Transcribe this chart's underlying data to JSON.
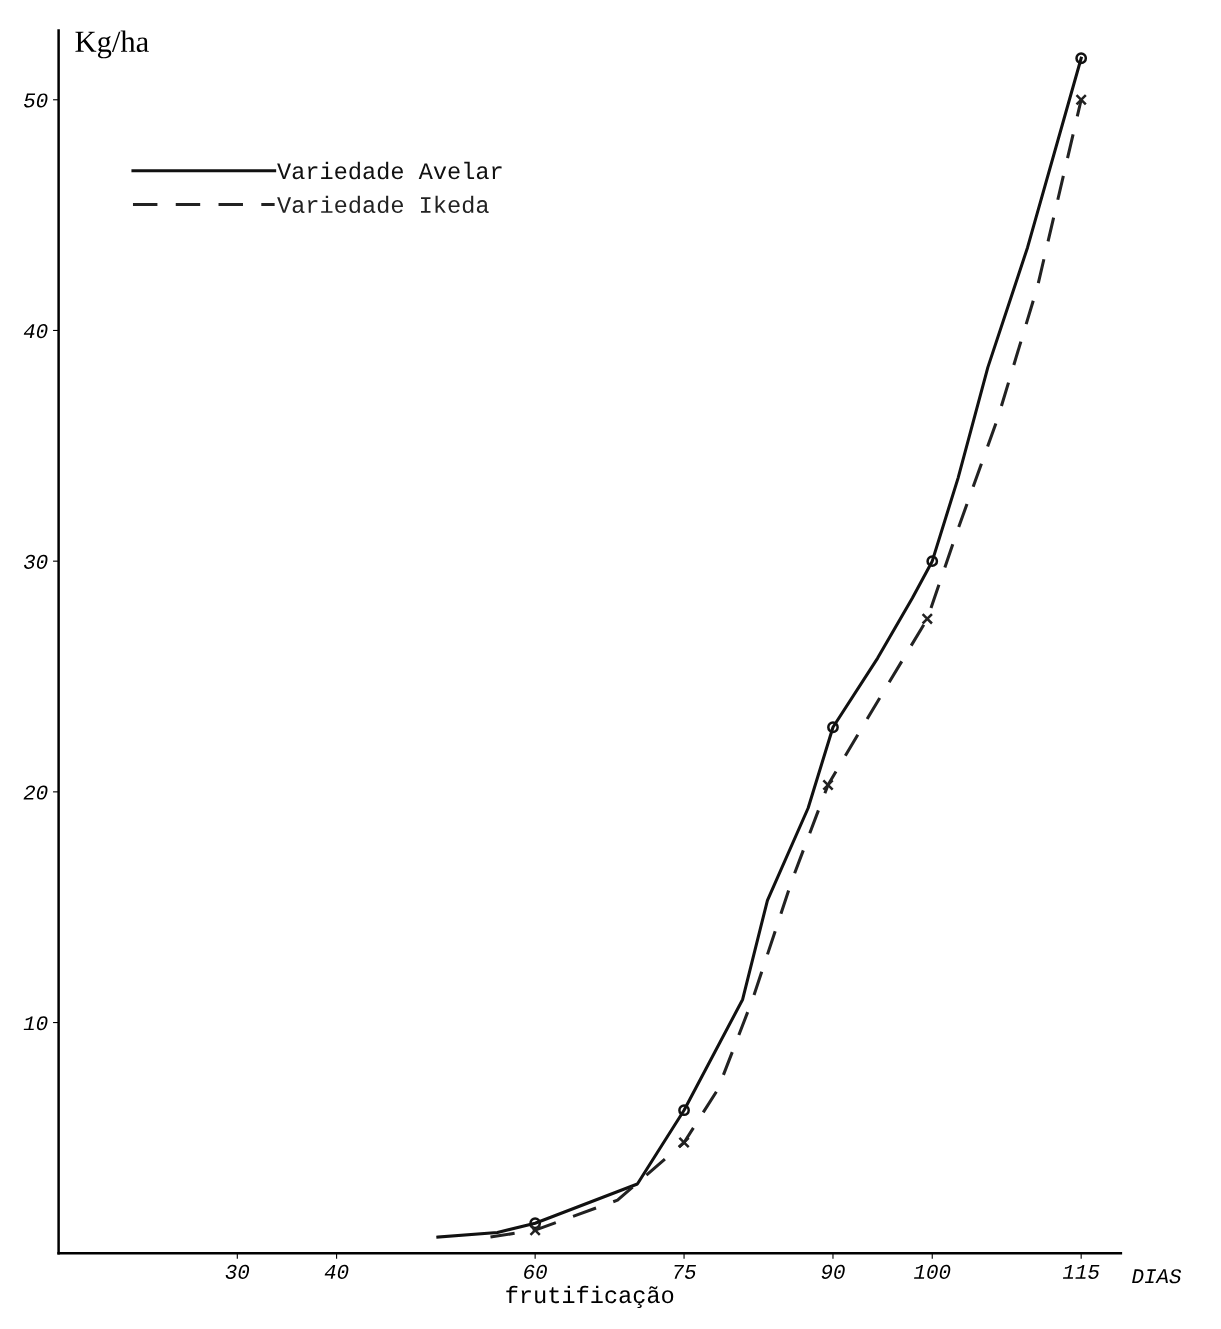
{
  "chart_data": {
    "type": "line",
    "ylabel": "Kg/ha",
    "xlabel": "frutificação",
    "annotations": [
      "DIAS"
    ],
    "xlim": [
      12,
      119
    ],
    "xticks": [
      30,
      40,
      60,
      75,
      90,
      100,
      115
    ],
    "ylim": [
      0,
      53
    ],
    "yticks": [
      10,
      20,
      30,
      40,
      50
    ],
    "grid": false,
    "legend": "top left",
    "series": [
      {
        "name": "Variedade Avelar",
        "line_style": "solid",
        "color": "#111111",
        "x": [
          50.2,
          56.2,
          60,
          70.3,
          75,
          80.9,
          83.4,
          87.5,
          90,
          94.5,
          98,
          100,
          102.6,
          105.6,
          109.6,
          115
        ],
        "values": [
          0.7,
          0.9,
          1.3,
          3.0,
          6.2,
          11,
          15.3,
          19.3,
          22.8,
          25.8,
          28.4,
          30,
          33.6,
          38.4,
          43.6,
          51.8
        ]
      },
      {
        "name": "Variedade Ikeda",
        "line_style": "dashed",
        "color": "#222222",
        "x": [
          55.5,
          60,
          68.3,
          75,
          78.4,
          81.9,
          85.9,
          89.5,
          93.5,
          99.5,
          102.6,
          106.6,
          110.6,
          115
        ],
        "values": [
          0.7,
          1.0,
          2.3,
          4.8,
          7.1,
          11,
          16.2,
          20.3,
          23.2,
          27.5,
          31.4,
          36.2,
          41.9,
          50
        ]
      },
      {
        "type": "scatter",
        "marker": "circle",
        "color": "#111111",
        "x": [
          60,
          75,
          90,
          100,
          115
        ],
        "values": [
          1.3,
          6.2,
          22.8,
          30,
          51.8
        ]
      },
      {
        "type": "scatter",
        "marker": "cross",
        "color": "#222222",
        "x": [
          60,
          75,
          89.5,
          99.5,
          115
        ],
        "values": [
          1.0,
          4.8,
          20.3,
          27.5,
          50
        ]
      }
    ]
  }
}
